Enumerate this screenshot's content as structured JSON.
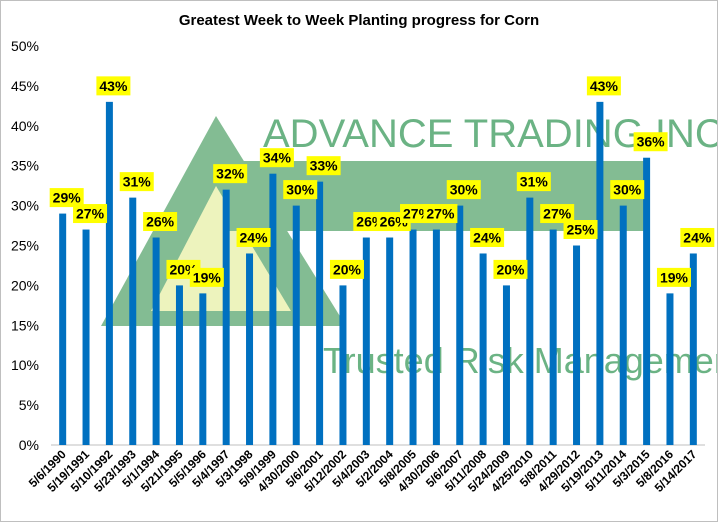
{
  "chart_data": {
    "type": "bar",
    "title": "Greatest Week to Week Planting progress for Corn",
    "xlabel": "",
    "ylabel": "",
    "ylim": [
      0,
      50
    ],
    "y_tick_format": "percent",
    "y_ticks": [
      0,
      5,
      10,
      15,
      20,
      25,
      30,
      35,
      40,
      45,
      50
    ],
    "grid": false,
    "legend": "none",
    "categories": [
      "5/6/1990",
      "5/19/1991",
      "5/10/1992",
      "5/23/1993",
      "5/1/1994",
      "5/21/1995",
      "5/5/1996",
      "5/4/1997",
      "5/3/1998",
      "5/9/1999",
      "4/30/2000",
      "5/6/2001",
      "5/12/2002",
      "5/4/2003",
      "5/2/2004",
      "5/8/2005",
      "4/30/2006",
      "5/6/2007",
      "5/11/2008",
      "5/24/2009",
      "4/25/2010",
      "5/8/2011",
      "4/29/2012",
      "5/19/2013",
      "5/11/2014",
      "5/3/2015",
      "5/8/2016",
      "5/14/2017"
    ],
    "values": [
      29,
      27,
      43,
      31,
      26,
      20,
      19,
      32,
      24,
      34,
      30,
      33,
      20,
      26,
      26,
      27,
      27,
      30,
      24,
      20,
      31,
      27,
      25,
      43,
      30,
      36,
      19,
      24
    ],
    "data_labels": [
      "29%",
      "27%",
      "43%",
      "31%",
      "26%",
      "20%",
      "19%",
      "32%",
      "24%",
      "34%",
      "30%",
      "33%",
      "20%",
      "26%",
      "26%",
      "27%",
      "27%",
      "30%",
      "24%",
      "20%",
      "31%",
      "27%",
      "25%",
      "43%",
      "30%",
      "36%",
      "19%",
      "24%"
    ],
    "colors": {
      "bar": "#0070c0",
      "label_bg": "#ffff00",
      "watermark": "#3a9a5c",
      "watermark_light": "#c8e6c9"
    }
  },
  "watermark": {
    "company": "ADVANCE TRADING INC",
    "tagline": "Trusted Risk Management"
  }
}
